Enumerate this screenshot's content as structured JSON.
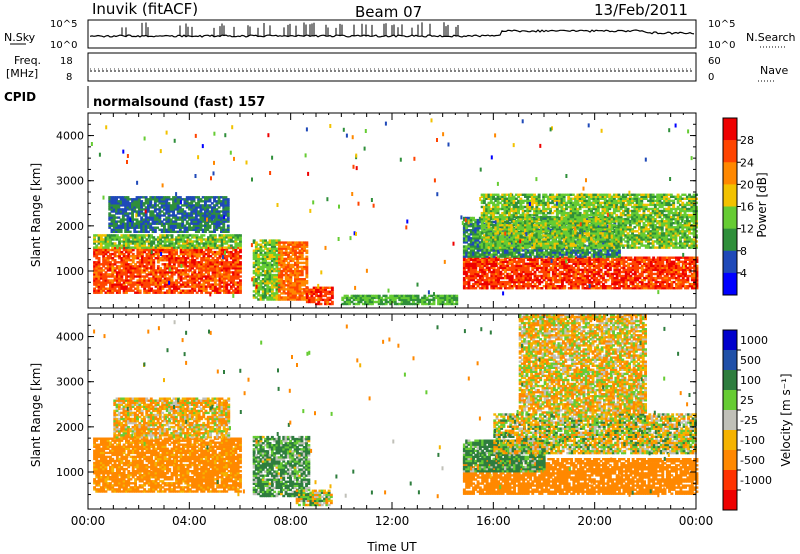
{
  "header": {
    "station": "Inuvik (fitACF)",
    "beam": "Beam 07",
    "date": "13/Feb/2011",
    "cpid_label": "CPID",
    "cpid_value": "normalsound (fast) 157"
  },
  "strips": {
    "nsky": {
      "label": "N.Sky",
      "right_label": "N.Search",
      "left_ticks": [
        "10^5",
        "10^0"
      ],
      "right_ticks": [
        "10^5",
        "10^0"
      ]
    },
    "freq": {
      "label_1": "Freq.",
      "label_2": "[MHz]",
      "right_label": "Nave",
      "left_ticks": [
        "18",
        "8"
      ],
      "right_ticks": [
        "60",
        "0"
      ]
    }
  },
  "colors": {
    "power_scale": [
      "#0000ff",
      "#1f49b8",
      "#2f8f3a",
      "#66cc33",
      "#f2c200",
      "#ff8800",
      "#ff4400",
      "#ee0000"
    ],
    "velocity_scale": [
      "#0000cc",
      "#2050a8",
      "#2e7d3e",
      "#66cc33",
      "#c0c0b8",
      "#f5b300",
      "#ff8800",
      "#ff3300",
      "#ee0000"
    ],
    "background": "#ffffff"
  },
  "chart_data": [
    {
      "type": "heatmap",
      "name": "power",
      "ylabel": "Slant Range [km]",
      "xlabel": "",
      "ylim": [
        180,
        4500
      ],
      "xlim": [
        "00:00",
        "24:00"
      ],
      "y_ticks": [
        "1000",
        "2000",
        "3000",
        "4000"
      ],
      "colorbar": {
        "label": "Power [dB]",
        "ticks": [
          "4",
          "8",
          "12",
          "16",
          "20",
          "24",
          "28"
        ],
        "range": [
          0,
          32
        ]
      },
      "regions": [
        {
          "t": [
            0.2,
            6.0
          ],
          "r": [
            500,
            1500
          ],
          "value": 26
        },
        {
          "t": [
            0.2,
            6.0
          ],
          "r": [
            1500,
            1800
          ],
          "value": 14
        },
        {
          "t": [
            0.8,
            5.5
          ],
          "r": [
            1850,
            2650
          ],
          "value": 8
        },
        {
          "t": [
            6.5,
            7.5
          ],
          "r": [
            350,
            1700
          ],
          "value": 14
        },
        {
          "t": [
            7.5,
            8.6
          ],
          "r": [
            350,
            1650
          ],
          "value": 24
        },
        {
          "t": [
            8.6,
            9.6
          ],
          "r": [
            250,
            650
          ],
          "value": 27
        },
        {
          "t": [
            10.0,
            14.5
          ],
          "r": [
            250,
            450
          ],
          "value": 12
        },
        {
          "t": [
            14.8,
            24.0
          ],
          "r": [
            600,
            1300
          ],
          "value": 27
        },
        {
          "t": [
            14.8,
            21.0
          ],
          "r": [
            1300,
            2200
          ],
          "value": 10
        },
        {
          "t": [
            15.5,
            24.0
          ],
          "r": [
            1500,
            2700
          ],
          "value": 14
        }
      ]
    },
    {
      "type": "heatmap",
      "name": "velocity",
      "ylabel": "Slant Range [km]",
      "xlabel": "Time UT",
      "ylim": [
        180,
        4500
      ],
      "xlim": [
        "00:00",
        "24:00"
      ],
      "x_ticks": [
        "00:00",
        "04:00",
        "08:00",
        "12:00",
        "16:00",
        "20:00",
        "00:00"
      ],
      "y_ticks": [
        "1000",
        "2000",
        "3000",
        "4000"
      ],
      "colorbar": {
        "label": "Velocity [m s⁻¹]",
        "ticks": [
          "1000",
          "500",
          "100",
          "25",
          "-25",
          "-100",
          "-500",
          "-1000"
        ]
      },
      "regions": [
        {
          "t": [
            0.2,
            6.0
          ],
          "r": [
            550,
            1750
          ],
          "value": -200
        },
        {
          "t": [
            1.0,
            5.5
          ],
          "r": [
            1750,
            2650
          ],
          "value": -80
        },
        {
          "t": [
            6.5,
            8.7
          ],
          "r": [
            450,
            1800
          ],
          "value": 120
        },
        {
          "t": [
            8.2,
            9.6
          ],
          "r": [
            250,
            600
          ],
          "value": 0
        },
        {
          "t": [
            14.8,
            24.0
          ],
          "r": [
            500,
            1300
          ],
          "value": -300
        },
        {
          "t": [
            14.8,
            18.0
          ],
          "r": [
            1000,
            1700
          ],
          "value": 150
        },
        {
          "t": [
            16.0,
            24.0
          ],
          "r": [
            1400,
            2300
          ],
          "value": 0
        },
        {
          "t": [
            17.0,
            22.0
          ],
          "r": [
            2300,
            4500
          ],
          "value": -50
        }
      ]
    }
  ]
}
